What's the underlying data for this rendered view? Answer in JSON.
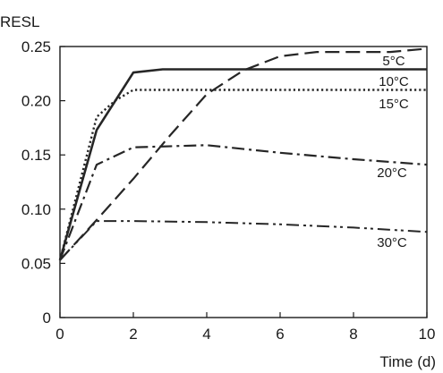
{
  "chart_data": {
    "type": "line",
    "ylabel": "RESL",
    "xlabel": "Time (d)",
    "xlim": [
      0,
      10
    ],
    "ylim": [
      0,
      0.25
    ],
    "x_ticks": [
      0,
      2,
      4,
      6,
      8,
      10
    ],
    "y_ticks": [
      {
        "value": 0,
        "label": "0"
      },
      {
        "value": 0.05,
        "label": "0.05"
      },
      {
        "value": 0.1,
        "label": "0.10"
      },
      {
        "value": 0.15,
        "label": "0.15"
      },
      {
        "value": 0.2,
        "label": "0.20"
      },
      {
        "value": 0.25,
        "label": "0.25"
      }
    ],
    "grid": false,
    "series": [
      {
        "name": "5°C",
        "line_style": "solid",
        "x": [
          0,
          1,
          2,
          2.8,
          4,
          6,
          8,
          10
        ],
        "y": [
          0.053,
          0.173,
          0.226,
          0.229,
          0.229,
          0.229,
          0.229,
          0.229
        ]
      },
      {
        "name": "10°C",
        "line_style": "dashed",
        "x": [
          0,
          1,
          2,
          3,
          4,
          5,
          6,
          7,
          8,
          9,
          10
        ],
        "y": [
          0.053,
          0.09,
          0.128,
          0.168,
          0.206,
          0.228,
          0.241,
          0.245,
          0.245,
          0.245,
          0.248
        ]
      },
      {
        "name": "15°C",
        "line_style": "dotted",
        "x": [
          0,
          1,
          1.5,
          2,
          4,
          6,
          8,
          10
        ],
        "y": [
          0.053,
          0.185,
          0.2,
          0.21,
          0.21,
          0.21,
          0.21,
          0.21
        ]
      },
      {
        "name": "20°C",
        "line_style": "dash-dot",
        "x": [
          0,
          1,
          2,
          4,
          6,
          8,
          10
        ],
        "y": [
          0.053,
          0.141,
          0.157,
          0.159,
          0.152,
          0.146,
          0.141
        ]
      },
      {
        "name": "30°C",
        "line_style": "dash-dot-dot",
        "x": [
          0,
          1,
          2,
          4,
          6,
          8,
          10
        ],
        "y": [
          0.053,
          0.089,
          0.089,
          0.088,
          0.086,
          0.083,
          0.079
        ]
      }
    ]
  },
  "colors": {
    "line": "#262626",
    "axis": "#1a1a1a",
    "background": "#ffffff"
  }
}
